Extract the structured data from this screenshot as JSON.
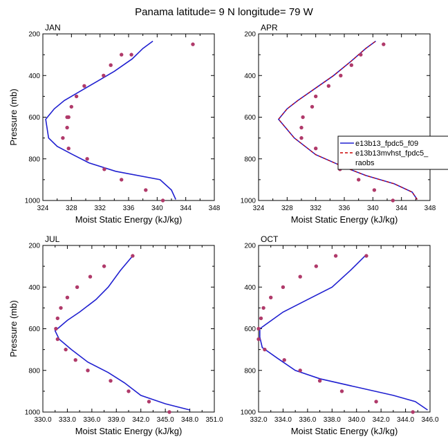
{
  "title": "Panama  latitude= 9 N longitude= 79 W",
  "colors": {
    "model1": "#1f1fd0",
    "model2": "#cc0000",
    "obs": "#b03a6a"
  },
  "legend": {
    "entries": [
      "e13b13_fpdc5_f09",
      "e13b13mvhst_fpdc5_",
      "raobs"
    ]
  },
  "chart_data": [
    {
      "type": "line",
      "panel": "JAN",
      "title": "JAN",
      "xlabel": "Moist Static Energy (kJ/kg)",
      "ylabel": "Pressure (mb)",
      "xlim": [
        324,
        348
      ],
      "ylim": [
        1000,
        200
      ],
      "x_ticks": [
        324,
        328,
        332,
        336,
        340,
        344,
        348
      ],
      "x_tick_labels": [
        "324",
        "328",
        "332",
        "336",
        "340",
        "344",
        "348"
      ],
      "y_ticks": [
        200,
        400,
        600,
        800,
        1000
      ],
      "y_tick_labels": [
        "200",
        "400",
        "600",
        "800",
        "1000"
      ],
      "series": [
        {
          "name": "e13b13_fpdc5_f09",
          "style": "line",
          "x": [
            342.6,
            342.0,
            340.4,
            334.2,
            330.5,
            328.2,
            326.0,
            324.8,
            324.4,
            325.6,
            327.0,
            329.0,
            331.5,
            334.0,
            336.5,
            338.0,
            339.4
          ],
          "y": [
            995,
            950,
            900,
            860,
            820,
            780,
            740,
            700,
            610,
            560,
            520,
            480,
            430,
            380,
            320,
            270,
            235
          ]
        },
        {
          "name": "raobs",
          "style": "points",
          "x": [
            340.8,
            338.4,
            335.0,
            332.6,
            330.2,
            327.6,
            326.8,
            327.4,
            327.4,
            327.6,
            328.0,
            328.7,
            329.8,
            332.5,
            333.5,
            335.0,
            336.4,
            345.0
          ],
          "y": [
            1000,
            950,
            900,
            850,
            800,
            750,
            700,
            650,
            600,
            600,
            550,
            500,
            450,
            400,
            350,
            300,
            300,
            250
          ]
        }
      ]
    },
    {
      "type": "line",
      "panel": "APR",
      "title": "APR",
      "xlabel": "Moist Static Energy (kJ/kg)",
      "ylabel": "",
      "xlim": [
        324,
        348
      ],
      "ylim": [
        1000,
        200
      ],
      "x_ticks": [
        324,
        328,
        332,
        336,
        340,
        344,
        348
      ],
      "x_tick_labels": [
        "324",
        "328",
        "332",
        "336",
        "340",
        "344",
        "348"
      ],
      "y_ticks": [
        200,
        400,
        600,
        800,
        1000
      ],
      "y_tick_labels": [
        "200",
        "400",
        "600",
        "800",
        "1000"
      ],
      "series": [
        {
          "name": "e13b13_fpdc5_f09",
          "style": "line",
          "x": [
            346.2,
            345.5,
            343.0,
            339.0,
            336.0,
            332.0,
            329.0,
            326.8,
            328.0,
            329.5,
            332.0,
            334.5,
            337.0,
            339.0,
            340.4
          ],
          "y": [
            995,
            960,
            920,
            880,
            840,
            780,
            700,
            610,
            560,
            520,
            460,
            400,
            330,
            270,
            235
          ]
        },
        {
          "name": "e13b13mvhst_fpdc5_",
          "style": "dashed",
          "x": [
            346.2,
            345.5,
            343.0,
            339.0,
            336.0,
            332.0,
            329.0,
            326.8,
            328.0,
            329.5,
            332.0,
            334.5,
            337.0,
            339.0,
            340.4
          ],
          "y": [
            995,
            960,
            920,
            880,
            840,
            780,
            700,
            610,
            560,
            520,
            460,
            400,
            330,
            270,
            235
          ]
        },
        {
          "name": "raobs",
          "style": "points",
          "x": [
            342.8,
            340.2,
            338.0,
            336.6,
            335.4,
            332.0,
            330.0,
            330.0,
            330.2,
            331.5,
            332.0,
            333.8,
            335.5,
            337.0,
            338.3,
            341.5
          ],
          "y": [
            1000,
            950,
            900,
            825,
            850,
            750,
            700,
            650,
            600,
            550,
            500,
            450,
            400,
            350,
            300,
            250
          ]
        }
      ]
    },
    {
      "type": "line",
      "panel": "JUL",
      "title": "JUL",
      "xlabel": "Moist Static Energy (kJ/kg)",
      "ylabel": "Pressure (mb)",
      "xlim": [
        330,
        351
      ],
      "ylim": [
        1000,
        200
      ],
      "x_ticks": [
        330,
        333,
        336,
        339,
        342,
        345,
        348,
        351
      ],
      "x_tick_labels": [
        "330.0",
        "333.0",
        "336.0",
        "339.0",
        "342.0",
        "345.0",
        "348.0",
        "351.0"
      ],
      "y_ticks": [
        200,
        400,
        600,
        800,
        1000
      ],
      "y_tick_labels": [
        "200",
        "400",
        "600",
        "800",
        "1000"
      ],
      "series": [
        {
          "name": "e13b13_fpdc5_f09",
          "style": "line",
          "x": [
            348.0,
            345.0,
            342.0,
            340.0,
            338.0,
            335.5,
            333.5,
            332.0,
            331.5,
            333.0,
            334.5,
            336.5,
            338.0,
            339.5,
            341.0
          ],
          "y": [
            990,
            960,
            920,
            860,
            810,
            760,
            700,
            650,
            610,
            560,
            520,
            460,
            400,
            320,
            250
          ]
        },
        {
          "name": "raobs",
          "style": "points",
          "x": [
            345.5,
            343.0,
            340.5,
            338.3,
            335.5,
            334.0,
            332.8,
            331.8,
            331.6,
            331.8,
            332.2,
            333.0,
            334.2,
            335.8,
            337.5,
            341.0
          ],
          "y": [
            1000,
            950,
            900,
            850,
            800,
            750,
            700,
            650,
            600,
            550,
            500,
            450,
            400,
            350,
            300,
            250
          ]
        }
      ]
    },
    {
      "type": "line",
      "panel": "OCT",
      "title": "OCT",
      "xlabel": "Moist Static Energy (kJ/kg)",
      "ylabel": "",
      "xlim": [
        332,
        346
      ],
      "ylim": [
        1000,
        200
      ],
      "x_ticks": [
        332,
        334,
        336,
        338,
        340,
        342,
        344,
        346
      ],
      "x_tick_labels": [
        "332.0",
        "334.0",
        "336.0",
        "338.0",
        "340.0",
        "342.0",
        "344.0",
        "346.0"
      ],
      "y_ticks": [
        200,
        400,
        600,
        800,
        1000
      ],
      "y_tick_labels": [
        "200",
        "400",
        "600",
        "800",
        "1000"
      ],
      "series": [
        {
          "name": "e13b13_fpdc5_f09",
          "style": "line",
          "x": [
            345.8,
            344.8,
            343.0,
            340.0,
            337.0,
            335.0,
            333.5,
            332.3,
            332.1,
            332.1,
            334.0,
            336.0,
            338.0,
            339.5,
            340.7
          ],
          "y": [
            990,
            950,
            920,
            880,
            840,
            800,
            740,
            690,
            640,
            600,
            520,
            460,
            400,
            320,
            250
          ]
        },
        {
          "name": "raobs",
          "style": "points",
          "x": [
            344.6,
            341.6,
            338.8,
            337.0,
            335.4,
            334.1,
            332.5,
            332.0,
            332.0,
            332.2,
            332.4,
            333.0,
            334.0,
            335.4,
            336.7,
            338.3,
            340.8
          ],
          "y": [
            1000,
            950,
            900,
            850,
            800,
            750,
            700,
            650,
            600,
            550,
            500,
            450,
            400,
            350,
            300,
            250,
            250
          ]
        }
      ]
    }
  ]
}
